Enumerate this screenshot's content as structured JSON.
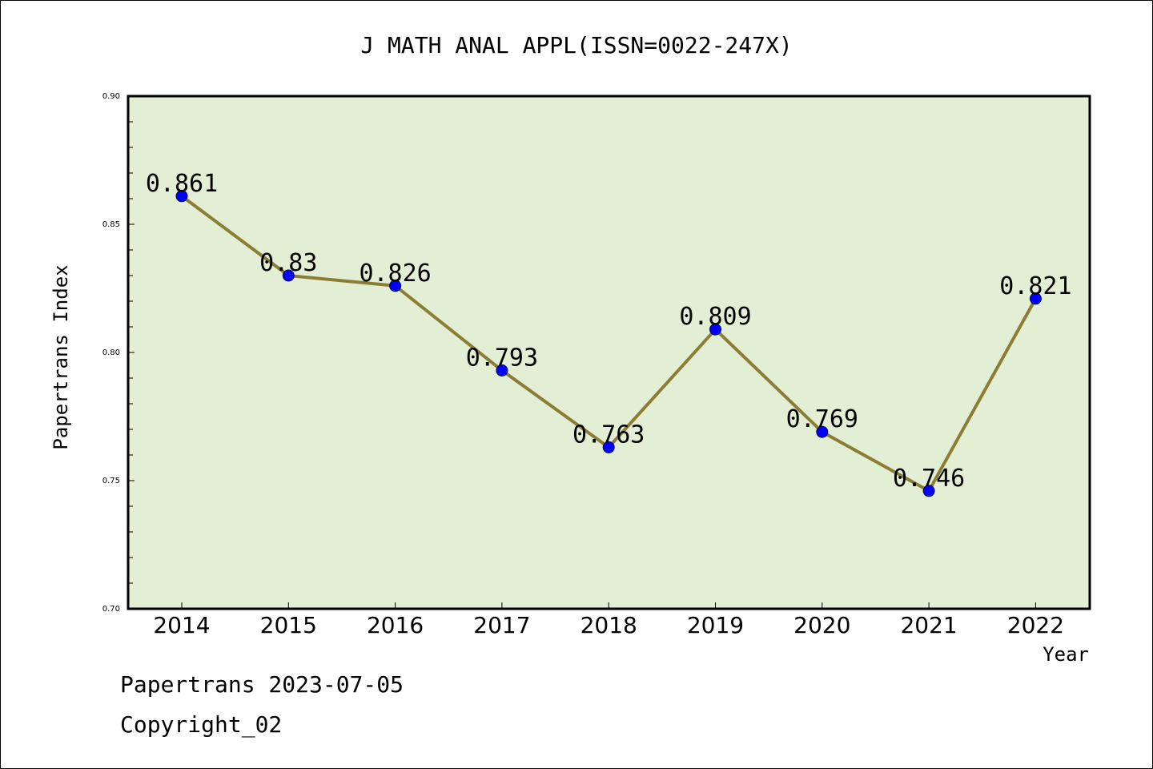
{
  "chart_data": {
    "type": "line",
    "title": "J MATH ANAL APPL(ISSN=0022-247X)",
    "xlabel": "Year",
    "ylabel": "Papertrans Index",
    "categories": [
      "2014",
      "2015",
      "2016",
      "2017",
      "2018",
      "2019",
      "2020",
      "2021",
      "2022"
    ],
    "series": [
      {
        "values": [
          0.861,
          0.83,
          0.826,
          0.793,
          0.763,
          0.809,
          0.769,
          0.746,
          0.821
        ],
        "labels": [
          "0.861",
          "0.83",
          "0.826",
          "0.793",
          "0.763",
          "0.809",
          "0.769",
          "0.746",
          "0.821"
        ]
      }
    ],
    "ylim": [
      0.7,
      0.9
    ],
    "yticks": [
      "0.70",
      "0.75",
      "0.80",
      "0.85",
      "0.90"
    ],
    "grid": false,
    "legend": "none"
  },
  "footer": {
    "line1": "Papertrans 2023-07-05",
    "line2": "Copyright_02"
  },
  "colors": {
    "plot_background": "#e2efd4",
    "line": "#8c7d35",
    "marker": "#0000ff",
    "axis": "#000000"
  }
}
